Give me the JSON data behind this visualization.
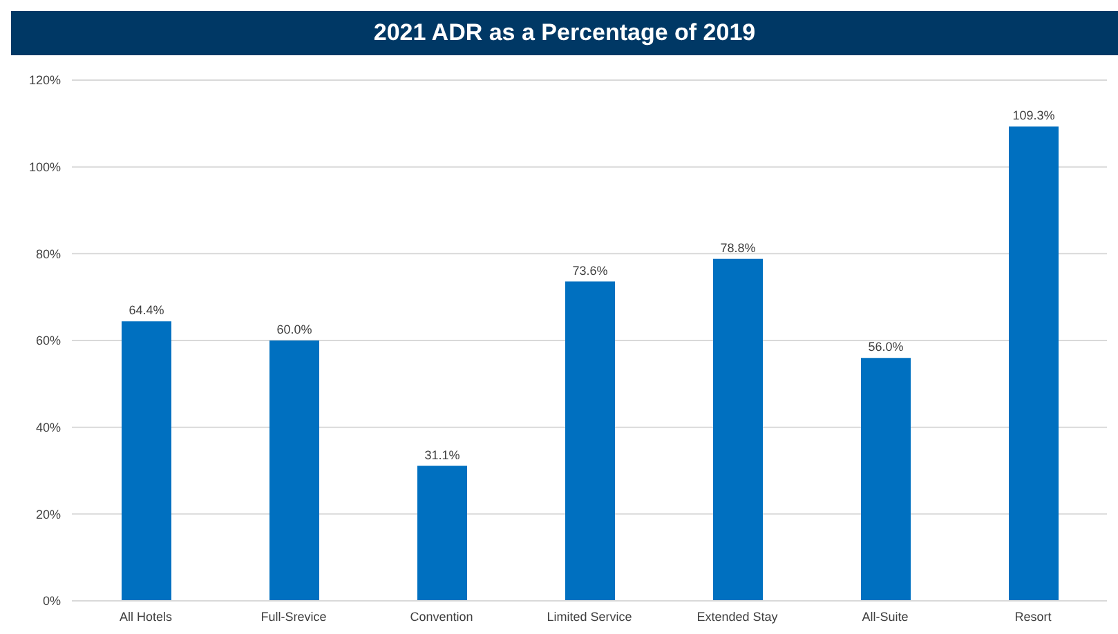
{
  "chart_data": {
    "type": "bar",
    "title": "2021 ADR as a Percentage of 2019",
    "categories": [
      "All Hotels",
      "Full-Srevice",
      "Convention",
      "Limited Service",
      "Extended Stay",
      "All-Suite",
      "Resort"
    ],
    "values": [
      64.4,
      60.0,
      31.1,
      73.6,
      78.8,
      56.0,
      109.3
    ],
    "value_labels": [
      "64.4%",
      "60.0%",
      "31.1%",
      "73.6%",
      "78.8%",
      "56.0%",
      "109.3%"
    ],
    "color": "#0070c0",
    "ylim": [
      0,
      120
    ],
    "yticks": [
      {
        "value": 0,
        "label": "0%"
      },
      {
        "value": 20,
        "label": "20%"
      },
      {
        "value": 40,
        "label": "40%"
      },
      {
        "value": 60,
        "label": "60%"
      },
      {
        "value": 80,
        "label": "80%"
      },
      {
        "value": 100,
        "label": "100%"
      },
      {
        "value": 120,
        "label": "120%"
      }
    ],
    "grid": "y"
  }
}
